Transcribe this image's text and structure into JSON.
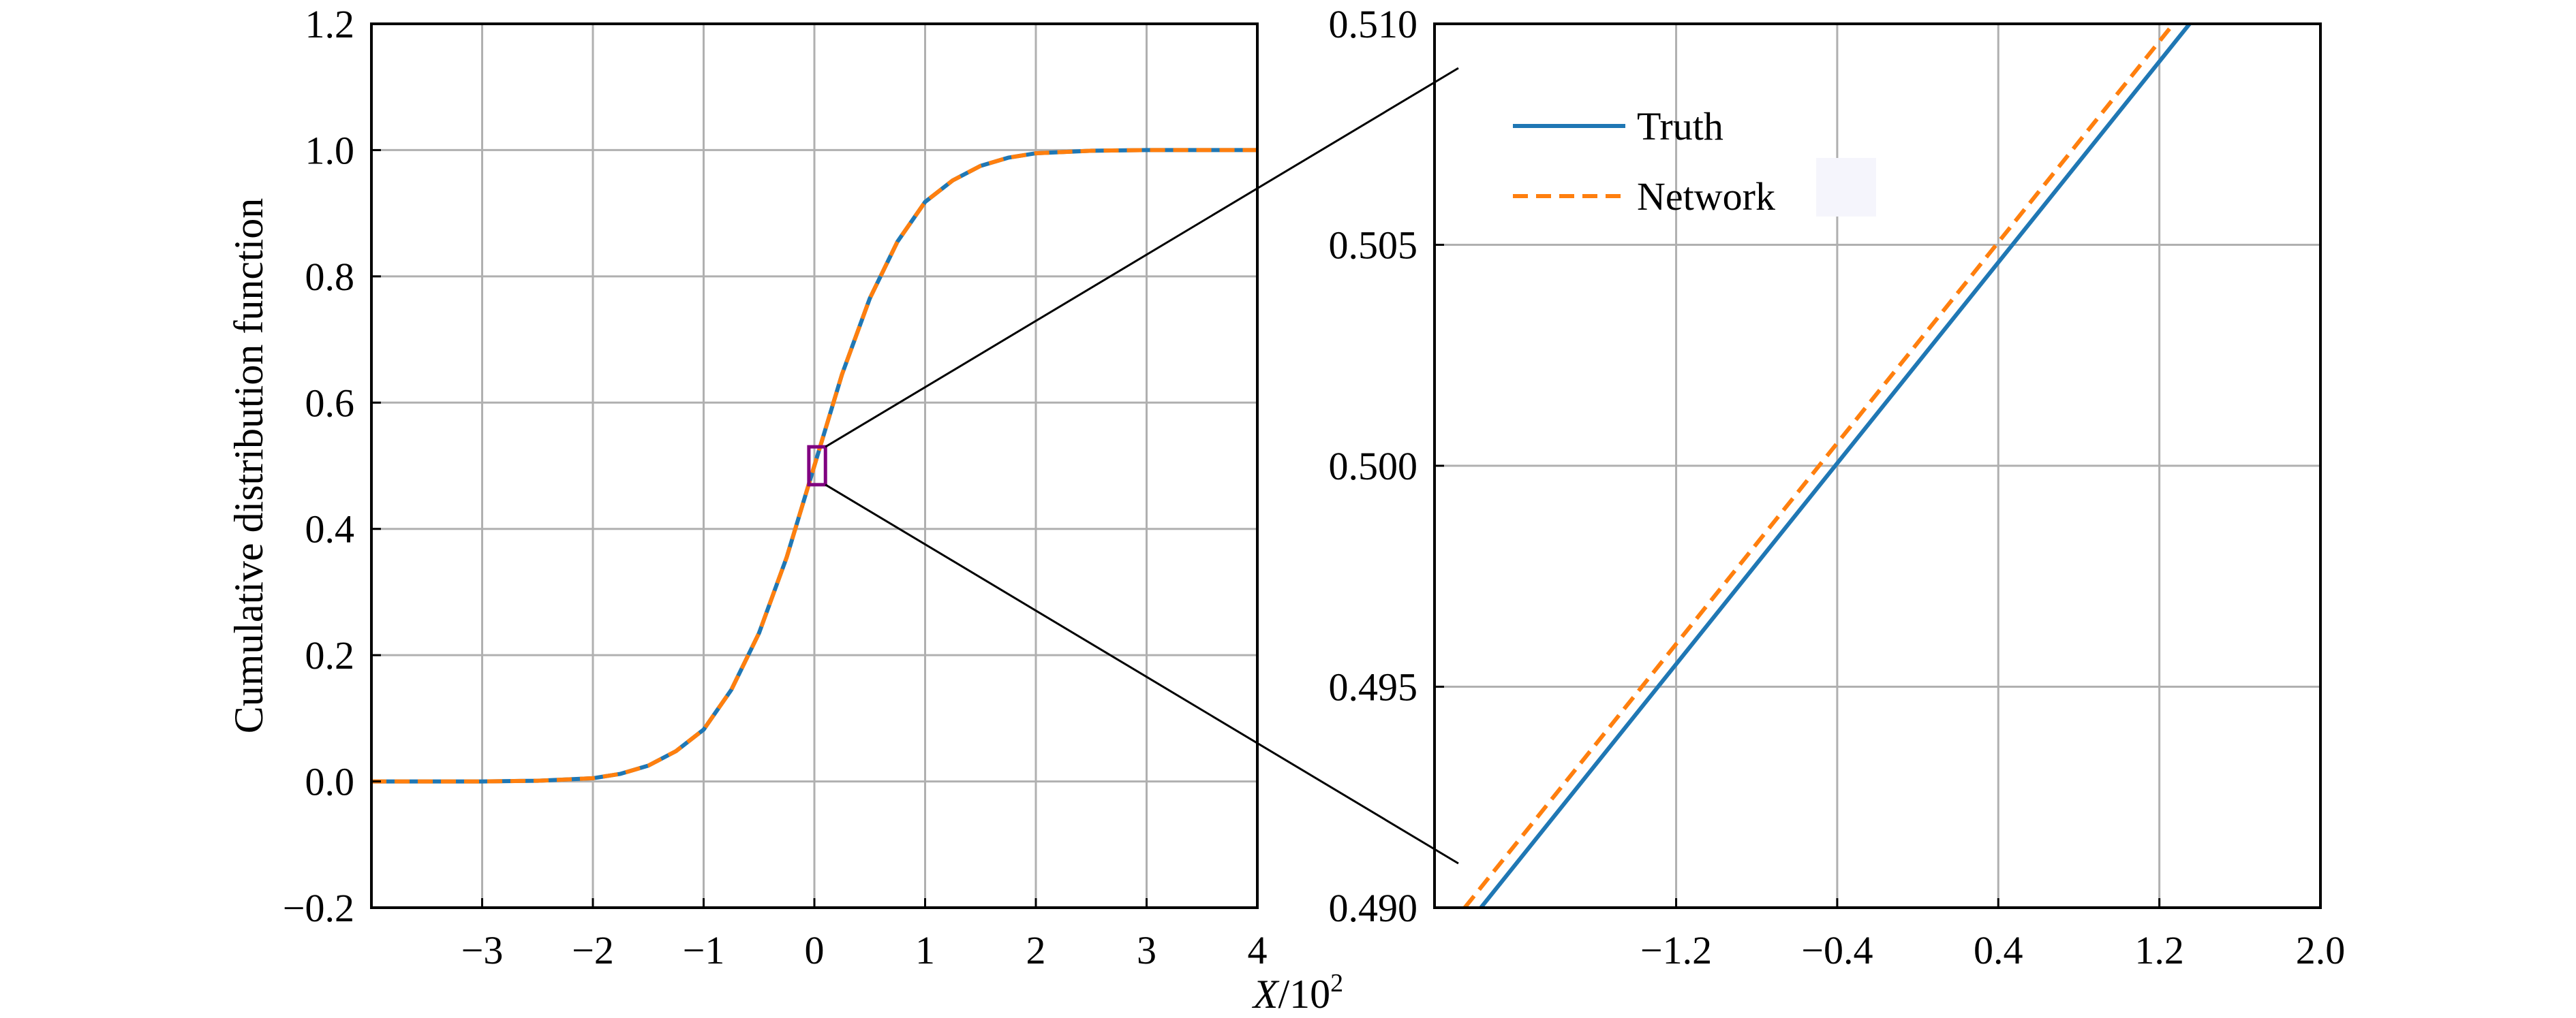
{
  "colors": {
    "truth": "#1f77b4",
    "network": "#ff7f0e",
    "zoom_box": "#800080",
    "grid": "#b0b0b0"
  },
  "xlabel_var": "X",
  "xlabel_unit": "/10",
  "xlabel_exp": "2",
  "chart_data": [
    {
      "type": "line",
      "title": "",
      "xlabel": "X/10^2",
      "ylabel": "Cumulative distribution function",
      "xlim": [
        -4,
        4
      ],
      "ylim": [
        -0.2,
        1.2
      ],
      "grid": true,
      "xticks": [
        -3,
        -2,
        -1,
        0,
        1,
        2,
        3,
        4
      ],
      "xtick_labels": [
        "−3",
        "−2",
        "−1",
        "0",
        "1",
        "2",
        "3",
        "4"
      ],
      "yticks": [
        -0.2,
        0.0,
        0.2,
        0.4,
        0.6,
        0.8,
        1.0,
        1.2
      ],
      "ytick_labels": [
        "−0.2",
        "0.0",
        "0.2",
        "0.4",
        "0.6",
        "0.8",
        "1.0",
        "1.2"
      ],
      "series": [
        {
          "name": "Truth",
          "style": "solid",
          "x": [
            -4,
            -3.5,
            -3,
            -2.5,
            -2,
            -1.75,
            -1.5,
            -1.25,
            -1,
            -0.75,
            -0.5,
            -0.25,
            0,
            0.25,
            0.5,
            0.75,
            1,
            1.25,
            1.5,
            1.75,
            2,
            2.5,
            3,
            3.5,
            4
          ],
          "y": [
            0.0,
            0.0,
            0.0,
            0.001,
            0.005,
            0.012,
            0.025,
            0.048,
            0.082,
            0.145,
            0.235,
            0.355,
            0.5,
            0.645,
            0.765,
            0.855,
            0.918,
            0.952,
            0.975,
            0.988,
            0.995,
            0.999,
            1.0,
            1.0,
            1.0
          ]
        },
        {
          "name": "Network",
          "style": "dashed",
          "x": [
            -4,
            -3.5,
            -3,
            -2.5,
            -2,
            -1.75,
            -1.5,
            -1.25,
            -1,
            -0.75,
            -0.5,
            -0.25,
            0,
            0.25,
            0.5,
            0.75,
            1,
            1.25,
            1.5,
            1.75,
            2,
            2.5,
            3,
            3.5,
            4
          ],
          "y": [
            0.0,
            0.0,
            0.0,
            0.001,
            0.005,
            0.012,
            0.025,
            0.048,
            0.082,
            0.145,
            0.235,
            0.355,
            0.5,
            0.645,
            0.765,
            0.855,
            0.918,
            0.952,
            0.975,
            0.988,
            0.995,
            0.999,
            1.0,
            1.0,
            1.0
          ]
        }
      ],
      "zoom_region": {
        "xlim": [
          -0.05,
          0.1
        ],
        "ylim": [
          0.47,
          0.53
        ]
      }
    },
    {
      "type": "line",
      "title": "",
      "xlim": [
        -2.4,
        2.0
      ],
      "ylim": [
        0.49,
        0.51
      ],
      "grid": true,
      "xticks": [
        -1.2,
        -0.4,
        0.4,
        1.2,
        2.0
      ],
      "xtick_labels": [
        "−1.2",
        "−0.4",
        "0.4",
        "1.2",
        "2.0"
      ],
      "yticks": [
        0.49,
        0.495,
        0.5,
        0.505,
        0.51
      ],
      "ytick_labels": [
        "0.490",
        "0.495",
        "0.500",
        "0.505",
        "0.510"
      ],
      "legend": {
        "position": "top-left",
        "entries": [
          "Truth",
          "Network"
        ]
      },
      "series": [
        {
          "name": "Truth",
          "style": "solid",
          "x": [
            -2.17,
            1.35
          ],
          "y": [
            0.49,
            0.51
          ]
        },
        {
          "name": "Network",
          "style": "dashed",
          "x": [
            -2.25,
            1.27
          ],
          "y": [
            0.49,
            0.51
          ]
        }
      ]
    }
  ]
}
